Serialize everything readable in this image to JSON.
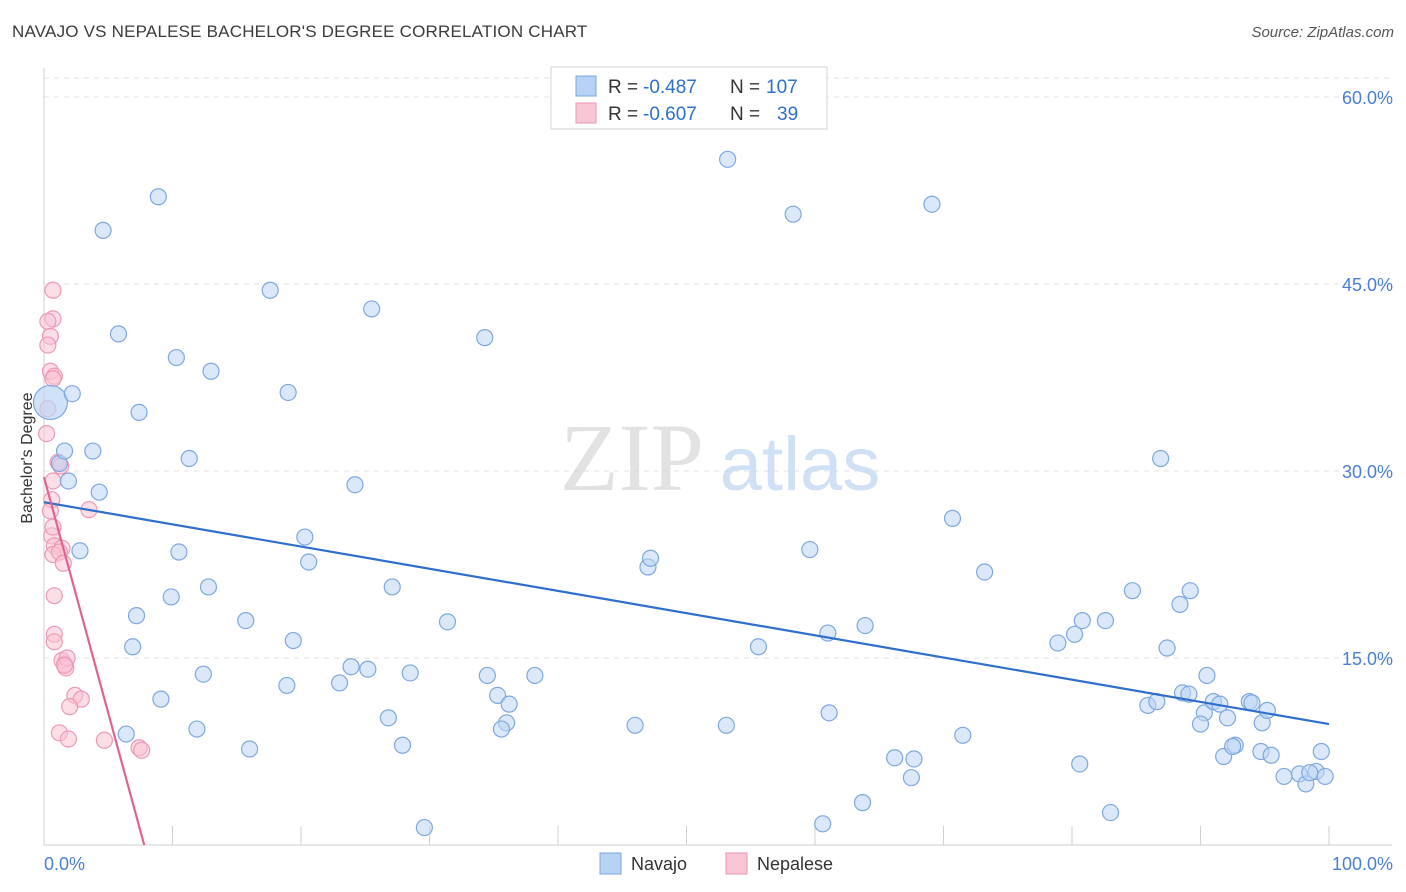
{
  "title": "NAVAJO VS NEPALESE BACHELOR'S DEGREE CORRELATION CHART",
  "source": "Source: ZipAtlas.com",
  "watermark": {
    "zip": "ZIP",
    "atlas": "atlas"
  },
  "colors": {
    "navajo": "#a9c8ef",
    "navajo_line": "#2f6fcc",
    "nepalese": "#f5b8cb",
    "nepalese_line": "#e0648e",
    "tick_text": "#4a7fd4"
  },
  "legend_top": [
    {
      "r_label": "R =",
      "r_value": "-0.487",
      "n_label": "N =",
      "n_value": "107"
    },
    {
      "r_label": "R =",
      "r_value": "-0.607",
      "n_label": "N =",
      "n_value": "39"
    }
  ],
  "chart_data": {
    "type": "scatter",
    "title": "NAVAJO VS NEPALESE BACHELOR'S DEGREE CORRELATION CHART",
    "xlabel": "",
    "ylabel": "Bachelor's Degree",
    "xlim": [
      0,
      100
    ],
    "ylim": [
      0,
      62
    ],
    "x_tick_labels": [
      {
        "value": 0,
        "label": "0.0%"
      },
      {
        "value": 100,
        "label": "100.0%"
      }
    ],
    "y_tick_labels": [
      {
        "value": 15,
        "label": "15.0%"
      },
      {
        "value": 30,
        "label": "30.0%"
      },
      {
        "value": 45,
        "label": "45.0%"
      },
      {
        "value": 60,
        "label": "60.0%"
      }
    ],
    "legend": [
      "Navajo",
      "Nepalese"
    ],
    "series": [
      {
        "name": "Navajo",
        "points": [
          [
            0.5,
            35.5
          ],
          [
            2.2,
            36.2
          ],
          [
            4.6,
            49.3
          ],
          [
            8.9,
            52
          ],
          [
            5.8,
            41
          ],
          [
            10.3,
            39.1
          ],
          [
            13,
            38
          ],
          [
            7.4,
            34.7
          ],
          [
            3.8,
            31.6
          ],
          [
            1.2,
            30.6
          ],
          [
            1.9,
            29.2
          ],
          [
            4.3,
            28.3
          ],
          [
            11.3,
            31
          ],
          [
            17.6,
            44.5
          ],
          [
            25.5,
            43
          ],
          [
            34.3,
            40.7
          ],
          [
            19,
            36.3
          ],
          [
            53.2,
            55
          ],
          [
            58.3,
            50.6
          ],
          [
            69.1,
            51.4
          ],
          [
            1.6,
            31.6
          ],
          [
            2.8,
            23.6
          ],
          [
            10.5,
            23.5
          ],
          [
            12.8,
            20.7
          ],
          [
            20.3,
            24.7
          ],
          [
            20.6,
            22.7
          ],
          [
            24.2,
            28.9
          ],
          [
            27.1,
            20.7
          ],
          [
            7.2,
            18.4
          ],
          [
            9.9,
            19.9
          ],
          [
            15.7,
            18
          ],
          [
            19.4,
            16.4
          ],
          [
            6.9,
            15.9
          ],
          [
            9.1,
            11.7
          ],
          [
            12.4,
            13.7
          ],
          [
            18.9,
            12.8
          ],
          [
            23,
            13
          ],
          [
            23.9,
            14.3
          ],
          [
            25.2,
            14.1
          ],
          [
            28.5,
            13.8
          ],
          [
            31.4,
            17.9
          ],
          [
            34.5,
            13.6
          ],
          [
            35.3,
            12
          ],
          [
            36.2,
            11.3
          ],
          [
            38.2,
            13.6
          ],
          [
            36,
            9.8
          ],
          [
            35.6,
            9.3
          ],
          [
            47,
            22.3
          ],
          [
            47.2,
            23
          ],
          [
            46,
            9.6
          ],
          [
            59.6,
            23.7
          ],
          [
            61,
            17
          ],
          [
            55.6,
            15.9
          ],
          [
            63.9,
            17.6
          ],
          [
            70.7,
            26.2
          ],
          [
            73.2,
            21.9
          ],
          [
            78.9,
            16.2
          ],
          [
            80.2,
            16.9
          ],
          [
            80.8,
            18
          ],
          [
            82.6,
            18
          ],
          [
            84.7,
            20.4
          ],
          [
            86.9,
            31
          ],
          [
            87.4,
            15.8
          ],
          [
            88.4,
            19.3
          ],
          [
            89.2,
            20.4
          ],
          [
            90.5,
            13.6
          ],
          [
            85.9,
            11.2
          ],
          [
            86.6,
            11.5
          ],
          [
            88.6,
            12.2
          ],
          [
            89.1,
            12.1
          ],
          [
            90.3,
            10.6
          ],
          [
            91,
            11.5
          ],
          [
            91.5,
            11.3
          ],
          [
            90,
            9.7
          ],
          [
            92.1,
            10.2
          ],
          [
            93.8,
            11.5
          ],
          [
            94,
            11.4
          ],
          [
            94.8,
            9.8
          ],
          [
            95.2,
            10.8
          ],
          [
            94.7,
            7.5
          ],
          [
            92.7,
            8
          ],
          [
            91.8,
            7.1
          ],
          [
            95.5,
            7.2
          ],
          [
            96.5,
            5.5
          ],
          [
            97.7,
            5.7
          ],
          [
            98.2,
            4.9
          ],
          [
            99,
            5.9
          ],
          [
            99.7,
            5.5
          ],
          [
            98.5,
            5.8
          ],
          [
            99.4,
            7.5
          ],
          [
            92.5,
            7.9
          ],
          [
            80.6,
            6.5
          ],
          [
            83,
            2.6
          ],
          [
            60.6,
            1.7
          ],
          [
            66.2,
            7
          ],
          [
            67.7,
            6.9
          ],
          [
            67.5,
            5.4
          ],
          [
            71.5,
            8.8
          ],
          [
            63.7,
            3.4
          ],
          [
            61.1,
            10.6
          ],
          [
            53.1,
            9.6
          ],
          [
            16,
            7.7
          ],
          [
            26.8,
            10.2
          ],
          [
            27.9,
            8
          ],
          [
            29.6,
            1.4
          ],
          [
            6.4,
            8.9
          ],
          [
            11.9,
            9.3
          ]
        ]
      },
      {
        "name": "Nepalese",
        "points": [
          [
            0.7,
            44.5
          ],
          [
            0.7,
            42.2
          ],
          [
            0.3,
            42
          ],
          [
            0.5,
            40.8
          ],
          [
            0.3,
            40.1
          ],
          [
            0.5,
            38
          ],
          [
            0.8,
            37.6
          ],
          [
            0.7,
            37.4
          ],
          [
            0.3,
            35
          ],
          [
            0.2,
            33
          ],
          [
            1.1,
            30.7
          ],
          [
            1.3,
            30.4
          ],
          [
            0.7,
            29.2
          ],
          [
            0.6,
            27.7
          ],
          [
            0.5,
            26.8
          ],
          [
            3.5,
            26.9
          ],
          [
            0.6,
            24.8
          ],
          [
            0.8,
            24
          ],
          [
            1.4,
            23.8
          ],
          [
            0.7,
            23.3
          ],
          [
            1.2,
            23.5
          ],
          [
            1.5,
            22.6
          ],
          [
            0.8,
            20
          ],
          [
            0.8,
            16.9
          ],
          [
            0.8,
            16.3
          ],
          [
            1.4,
            14.8
          ],
          [
            1.6,
            14.5
          ],
          [
            1.7,
            14.2
          ],
          [
            1.8,
            15
          ],
          [
            2.4,
            12
          ],
          [
            2.9,
            11.7
          ],
          [
            2.0,
            11.1
          ],
          [
            1.2,
            9
          ],
          [
            1.9,
            8.5
          ],
          [
            4.7,
            8.4
          ],
          [
            7.4,
            7.8
          ],
          [
            7.6,
            7.6
          ],
          [
            0.7,
            25.5
          ],
          [
            1.6,
            14.4
          ]
        ]
      }
    ],
    "trendlines": [
      {
        "series": "Navajo",
        "from": [
          0,
          27.5
        ],
        "to": [
          100,
          9.7
        ]
      },
      {
        "series": "Nepalese",
        "from": [
          0,
          29.5
        ],
        "to": [
          7.8,
          0
        ]
      }
    ]
  }
}
